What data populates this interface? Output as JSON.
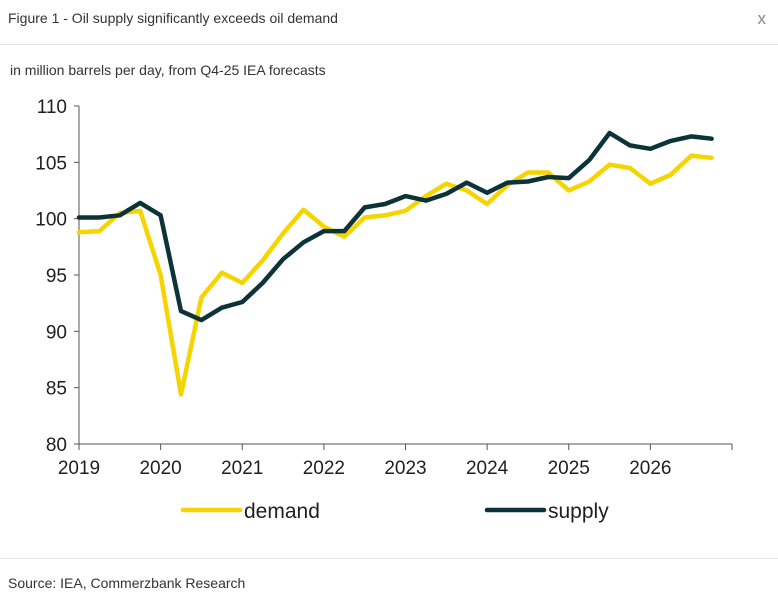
{
  "header": {
    "title": "Figure 1 - Oil supply significantly exceeds oil demand",
    "close_label": "x"
  },
  "subtitle": "in million barrels per day, from Q4-25 IEA forecasts",
  "source": "Source: IEA, Commerzbank Research",
  "colors": {
    "demand": "#f5d400",
    "supply": "#0b3338",
    "axis": "#555555"
  },
  "chart_data": {
    "type": "line",
    "title": "Oil supply significantly exceeds oil demand",
    "ylabel": "in million barrels per day, from Q4-25 IEA forecasts",
    "xlabel": "",
    "ylim": [
      80,
      110
    ],
    "yticks": [
      "80",
      "85",
      "90",
      "95",
      "100",
      "105",
      "110"
    ],
    "xticks": [
      "2019",
      "2020",
      "2021",
      "2022",
      "2023",
      "2024",
      "2025",
      "2026"
    ],
    "x_start_year": 2019,
    "grid": false,
    "legend": "bottom",
    "series": [
      {
        "name": "demand",
        "color": "#f5d400",
        "values": [
          98.8,
          98.9,
          100.5,
          100.7,
          95.0,
          84.4,
          93.0,
          95.2,
          94.3,
          96.3,
          98.7,
          100.8,
          99.3,
          98.4,
          100.1,
          100.3,
          100.7,
          102.0,
          103.1,
          102.5,
          101.3,
          103.0,
          104.1,
          104.1,
          102.5,
          103.3,
          104.8,
          104.5,
          103.1,
          103.9,
          105.6,
          105.4
        ]
      },
      {
        "name": "supply",
        "color": "#0b3338",
        "values": [
          100.1,
          100.1,
          100.3,
          101.4,
          100.3,
          91.8,
          91.0,
          92.1,
          92.6,
          94.3,
          96.4,
          97.9,
          98.9,
          98.9,
          101.0,
          101.3,
          102.0,
          101.6,
          102.2,
          103.2,
          102.3,
          103.2,
          103.3,
          103.7,
          103.6,
          105.2,
          107.6,
          106.5,
          106.2,
          106.9,
          107.3,
          107.1
        ]
      }
    ]
  }
}
